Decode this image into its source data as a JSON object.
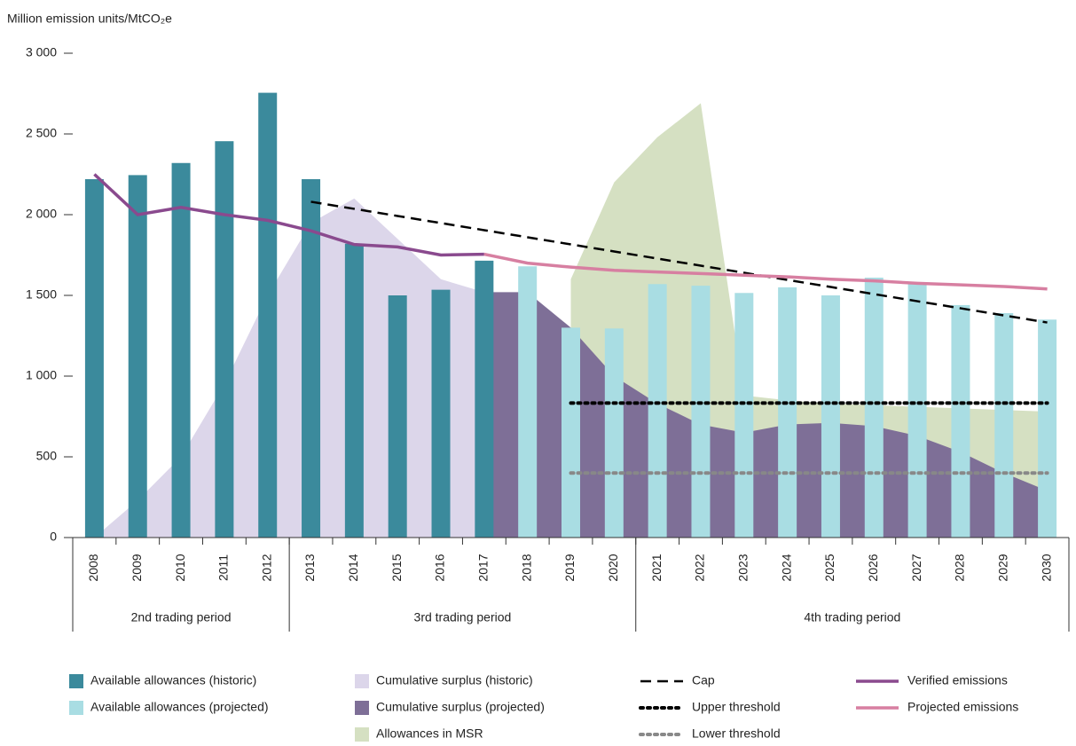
{
  "chart_data": {
    "type": "combo",
    "y_label": "Million emission units/MtCO₂e",
    "categories": [
      "2008",
      "2009",
      "2010",
      "2011",
      "2012",
      "2013",
      "2014",
      "2015",
      "2016",
      "2017",
      "2018",
      "2019",
      "2020",
      "2021",
      "2022",
      "2023",
      "2024",
      "2025",
      "2026",
      "2027",
      "2028",
      "2029",
      "2030"
    ],
    "ylim": [
      0,
      3000
    ],
    "yticks": [
      0,
      500,
      {
        "value": 1000,
        "label": "1 000"
      },
      {
        "value": 1500,
        "label": "1 500"
      },
      {
        "value": 2000,
        "label": "2 000"
      },
      {
        "value": 2500,
        "label": "2 500"
      },
      {
        "value": 3000,
        "label": "3 000"
      }
    ],
    "periods": [
      {
        "label": "2nd trading period",
        "from": "2008",
        "to": "2012"
      },
      {
        "label": "3rd trading period",
        "from": "2013",
        "to": "2020"
      },
      {
        "label": "4th trading period",
        "from": "2021",
        "to": "2030"
      }
    ],
    "series": [
      {
        "name": "Available allowances (historic)",
        "kind": "bar",
        "color": "#3b8a9c",
        "values": [
          2220,
          2245,
          2320,
          2455,
          2755,
          2220,
          1820,
          1500,
          1535,
          1715,
          null,
          null,
          null,
          null,
          null,
          null,
          null,
          null,
          null,
          null,
          null,
          null,
          null
        ]
      },
      {
        "name": "Available allowances (projected)",
        "kind": "bar",
        "color": "#a9dde3",
        "values": [
          null,
          null,
          null,
          null,
          null,
          null,
          null,
          null,
          null,
          null,
          1680,
          1300,
          1295,
          1570,
          1560,
          1515,
          1550,
          1500,
          1610,
          1570,
          1440,
          1390,
          1350
        ]
      },
      {
        "name": "Cumulative surplus (historic)",
        "kind": "area",
        "color": "#dcd6ea",
        "values": [
          0,
          230,
          500,
          950,
          1500,
          1950,
          2100,
          1850,
          1600,
          1520,
          null,
          null,
          null,
          null,
          null,
          null,
          null,
          null,
          null,
          null,
          null,
          null,
          null
        ]
      },
      {
        "name": "Cumulative surplus (projected)",
        "kind": "area",
        "color": "#7e6f97",
        "values": [
          null,
          null,
          null,
          null,
          null,
          null,
          null,
          null,
          null,
          1520,
          1520,
          1300,
          1000,
          830,
          700,
          650,
          700,
          710,
          690,
          630,
          530,
          400,
          290
        ]
      },
      {
        "name": "Allowances in MSR",
        "kind": "area",
        "color": "#d5e0c2",
        "values": [
          null,
          null,
          null,
          null,
          null,
          null,
          null,
          null,
          null,
          null,
          null,
          1600,
          2200,
          2480,
          2690,
          880,
          850,
          830,
          820,
          810,
          800,
          790,
          780
        ]
      },
      {
        "name": "Cap",
        "kind": "line",
        "color": "#000000",
        "dash": "dash",
        "values": [
          null,
          null,
          null,
          null,
          null,
          2080,
          2036,
          1992,
          1948,
          1904,
          1860,
          1816,
          1772,
          1728,
          1684,
          1640,
          1596,
          1552,
          1508,
          1464,
          1420,
          1376,
          1332
        ]
      },
      {
        "name": "Upper threshold",
        "kind": "line",
        "color": "#000000",
        "dash": "dot",
        "values": [
          null,
          null,
          null,
          null,
          null,
          null,
          null,
          null,
          null,
          null,
          null,
          833,
          833,
          833,
          833,
          833,
          833,
          833,
          833,
          833,
          833,
          833,
          833
        ]
      },
      {
        "name": "Lower threshold",
        "kind": "line",
        "color": "#888888",
        "dash": "dot",
        "values": [
          null,
          null,
          null,
          null,
          null,
          null,
          null,
          null,
          null,
          null,
          null,
          400,
          400,
          400,
          400,
          400,
          400,
          400,
          400,
          400,
          400,
          400,
          400
        ]
      },
      {
        "name": "Verified emissions",
        "kind": "line",
        "color": "#8a4a8e",
        "values": [
          2250,
          2000,
          2045,
          2000,
          1965,
          1900,
          1815,
          1800,
          1750,
          1755,
          null,
          null,
          null,
          null,
          null,
          null,
          null,
          null,
          null,
          null,
          null,
          null,
          null
        ]
      },
      {
        "name": "Projected emissions",
        "kind": "line",
        "color": "#d77fa1",
        "values": [
          null,
          null,
          null,
          null,
          null,
          null,
          null,
          null,
          null,
          1755,
          1700,
          1675,
          1655,
          1645,
          1635,
          1625,
          1615,
          1600,
          1590,
          1575,
          1565,
          1555,
          1540
        ]
      }
    ]
  }
}
